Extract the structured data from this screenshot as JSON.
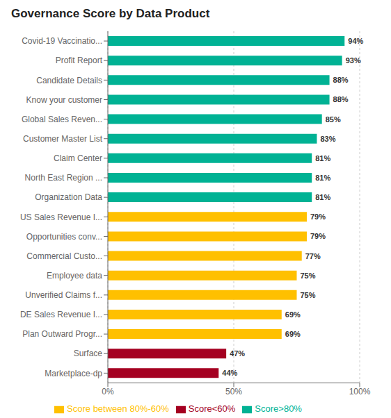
{
  "chart_data": {
    "type": "bar",
    "orientation": "horizontal",
    "stacked": true,
    "title": "Governance Score by Data Product",
    "categories": [
      "Marketplace-dp",
      "Surface",
      "Plan Outward Progr...",
      "DE Sales Revenue I...",
      "Unverified Claims f...",
      "Employee data",
      "Commercial Custo...",
      "Opportunities conv...",
      "US Sales Revenue I...",
      "Organization Data",
      "North East Region ...",
      "Claim Center",
      "Customer Master List",
      "Global Sales Reven...",
      "Know your customer",
      "Candidate Details",
      "Profit Report",
      "Covid-19 Vaccinatio..."
    ],
    "series": [
      {
        "name": "Score>80%",
        "color": "#00B294",
        "values": [
          null,
          null,
          null,
          null,
          null,
          null,
          null,
          null,
          null,
          81,
          81,
          81,
          83,
          85,
          88,
          88,
          93,
          94
        ],
        "value_labels": [
          null,
          null,
          null,
          null,
          null,
          null,
          null,
          null,
          null,
          "81%",
          "81%",
          "81%",
          "83%",
          "85%",
          "88%",
          "88%",
          "93%",
          "94%"
        ]
      },
      {
        "name": "Score between 80%-60%",
        "color": "#FFC000",
        "values": [
          null,
          null,
          69,
          69,
          75,
          75,
          77,
          79,
          79,
          null,
          null,
          null,
          null,
          null,
          null,
          null,
          null,
          null
        ],
        "value_labels": [
          null,
          null,
          "69%",
          "69%",
          "75%",
          "75%",
          "77%",
          "79%",
          "79%",
          null,
          null,
          null,
          null,
          null,
          null,
          null,
          null,
          null
        ]
      },
      {
        "name": "Score<60%",
        "color": "#A50021",
        "values": [
          44,
          47,
          null,
          null,
          null,
          null,
          null,
          null,
          null,
          null,
          null,
          null,
          null,
          null,
          null,
          null,
          null,
          null
        ],
        "value_labels": [
          "44%",
          "47%",
          null,
          null,
          null,
          null,
          null,
          null,
          null,
          null,
          null,
          null,
          null,
          null,
          null,
          null,
          null,
          null
        ]
      }
    ],
    "xlim": [
      0,
      100
    ],
    "xticks": [
      {
        "value": 0,
        "label": "0%"
      },
      {
        "value": 50,
        "label": "50%"
      },
      {
        "value": 100,
        "label": "100%"
      }
    ],
    "grid": true,
    "data_labels": true,
    "legend": "bottom"
  }
}
